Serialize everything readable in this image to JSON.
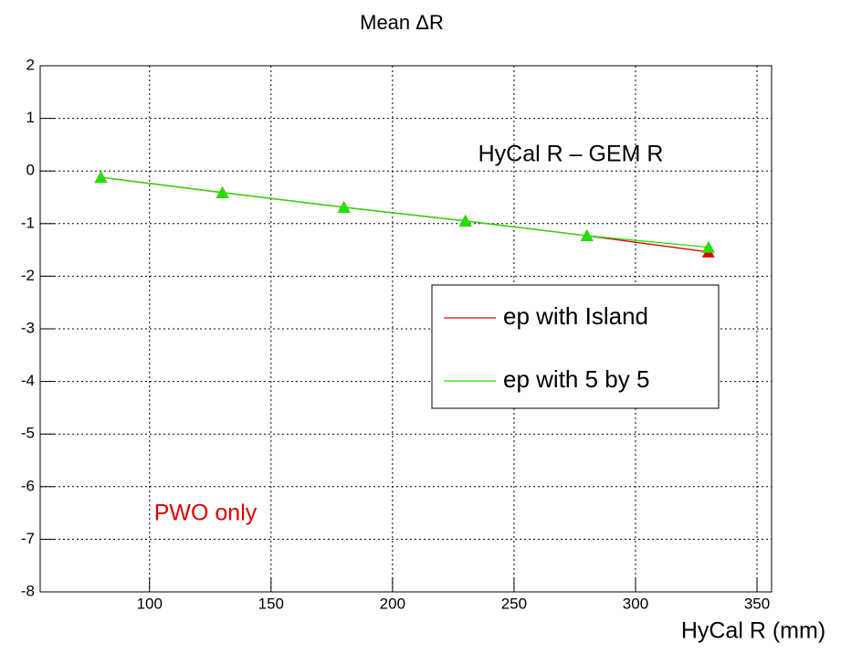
{
  "chart_data": {
    "type": "line",
    "title": "Mean ΔR",
    "x_label": "HyCal R (mm)",
    "x": [
      80,
      130,
      180,
      230,
      280,
      330
    ],
    "series": [
      {
        "name": "ep with Island",
        "color": "#e00000",
        "values": [
          -0.12,
          -0.41,
          -0.69,
          -0.95,
          -1.23,
          -1.54
        ]
      },
      {
        "name": "ep with 5 by 5",
        "color": "#22e000",
        "values": [
          -0.12,
          -0.41,
          -0.69,
          -0.95,
          -1.23,
          -1.45
        ]
      }
    ],
    "xlim": [
      55,
      356
    ],
    "xticks": [
      100,
      150,
      200,
      250,
      300,
      350
    ],
    "ylim": [
      -8,
      2
    ],
    "yticks": [
      -8,
      -7,
      -6,
      -5,
      -4,
      -3,
      -2,
      -1,
      0,
      1,
      2
    ],
    "grid": true,
    "annotations": [
      "HyCal R – GEM R",
      "PWO only"
    ]
  }
}
